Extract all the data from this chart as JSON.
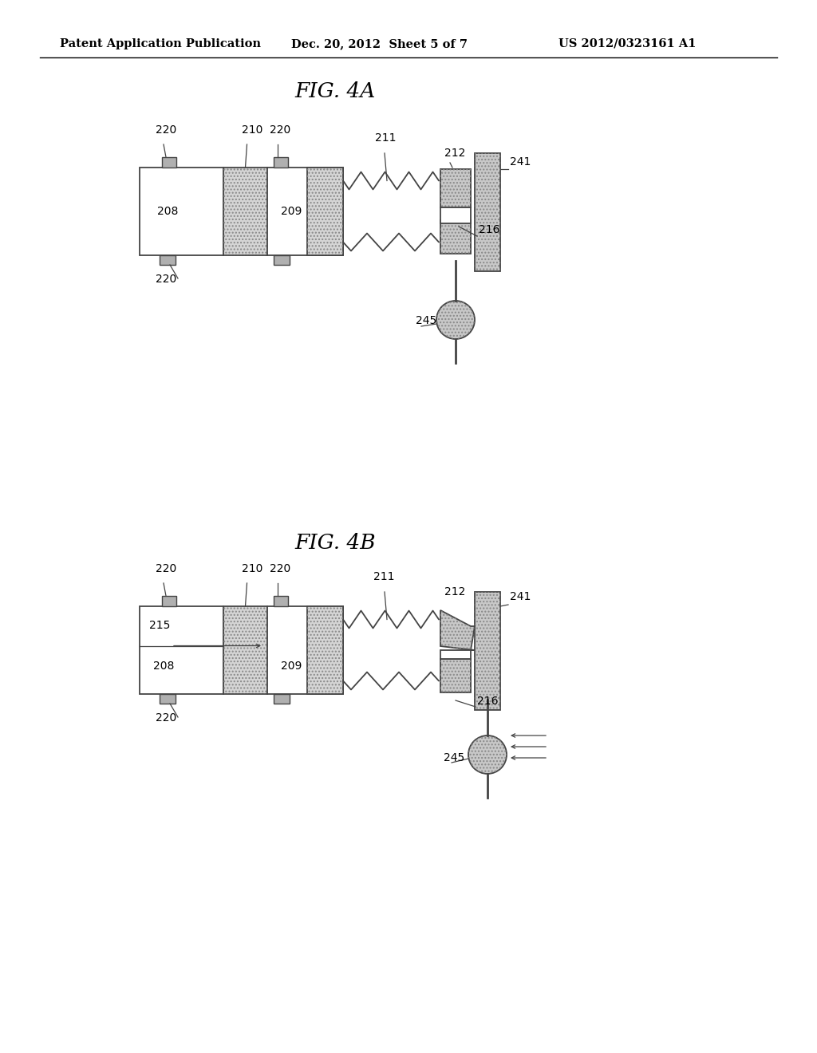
{
  "bg_color": "#ffffff",
  "header_text": "Patent Application Publication",
  "header_date": "Dec. 20, 2012  Sheet 5 of 7",
  "header_patent": "US 2012/0323161 A1",
  "fig4a_title": "FIG. 4A",
  "fig4b_title": "FIG. 4B",
  "line_color": "#444444",
  "fill_dots": "#d0d0d0",
  "fill_hatch": "#c0c0c0"
}
